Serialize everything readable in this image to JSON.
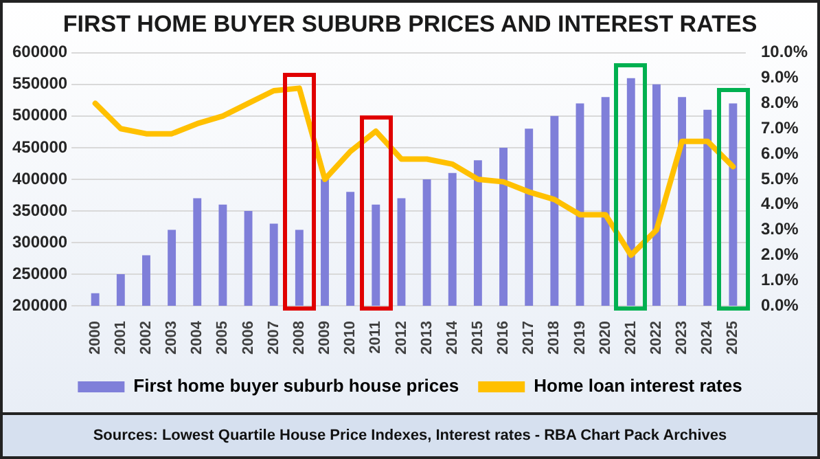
{
  "chart_data": {
    "type": "bar",
    "title": "FIRST HOME BUYER SUBURB PRICES AND INTEREST RATES",
    "categories": [
      "2000",
      "2001",
      "2002",
      "2003",
      "2004",
      "2005",
      "2006",
      "2007",
      "2008",
      "2009",
      "2010",
      "2011",
      "2012",
      "2013",
      "2014",
      "2015",
      "2016",
      "2017",
      "2018",
      "2019",
      "2020",
      "2021",
      "2022",
      "2023",
      "2024",
      "2025"
    ],
    "series": [
      {
        "name": "First home buyer suburb house prices",
        "color": "#7f7fd9",
        "values": [
          220000,
          250000,
          280000,
          320000,
          370000,
          360000,
          350000,
          330000,
          320000,
          400000,
          380000,
          360000,
          370000,
          400000,
          410000,
          430000,
          450000,
          480000,
          500000,
          520000,
          530000,
          560000,
          550000,
          530000,
          510000,
          520000
        ]
      },
      {
        "name": "Home loan interest rates",
        "type": "line",
        "axis": "y2",
        "color": "#ffc000",
        "values": [
          8.0,
          7.0,
          6.8,
          6.8,
          7.2,
          7.5,
          8.0,
          8.5,
          8.6,
          5.0,
          6.1,
          6.9,
          5.8,
          5.8,
          5.6,
          5.0,
          4.9,
          4.5,
          4.2,
          3.6,
          3.6,
          2.0,
          3.0,
          6.5,
          6.5,
          5.5
        ]
      }
    ],
    "ylim": [
      200000,
      600000
    ],
    "yticks": [
      200000,
      250000,
      300000,
      350000,
      400000,
      450000,
      500000,
      550000,
      600000
    ],
    "y2lim": [
      0,
      10
    ],
    "y2ticks": [
      {
        "value": 0,
        "label": "0.0%"
      },
      {
        "value": 1,
        "label": "1.0%"
      },
      {
        "value": 2,
        "label": "2.0%"
      },
      {
        "value": 3,
        "label": "3.0%"
      },
      {
        "value": 4,
        "label": "4.0%"
      },
      {
        "value": 5,
        "label": "5.0%"
      },
      {
        "value": 6,
        "label": "6.0%"
      },
      {
        "value": 7,
        "label": "7.0%"
      },
      {
        "value": 8,
        "label": "8.0%"
      },
      {
        "value": 9,
        "label": "9.0%"
      },
      {
        "value": 10,
        "label": "10.0%"
      }
    ],
    "grid": "y",
    "legend": "bottom",
    "marker": "none",
    "annotations": [
      "Sources: Lowest Quartile House Price Indexes, Interest rates - RBA Chart Pack Archives"
    ]
  }
}
